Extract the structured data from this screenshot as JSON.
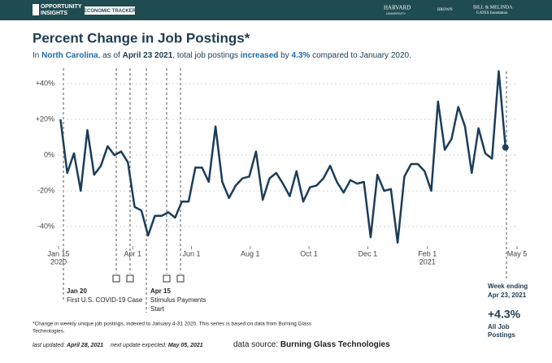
{
  "header": {
    "logo_line1": "OPPORTUNITY",
    "logo_line2": "INSIGHTS",
    "tracker": "ECONOMIC TRACKER",
    "harvard": "HARVARD",
    "harvard_sub": "UNIVERSITY",
    "brown": "BROWN",
    "gates": "BILL & MELINDA",
    "gates2": "GATES foundation"
  },
  "chart_data": {
    "type": "line",
    "title": "Percent Change in Job Postings*",
    "subtitle": [
      "In ",
      "North Carolina",
      ", as of ",
      "April 23 2021",
      ", total job postings ",
      "increased",
      " by ",
      "4.3%",
      " compared to January 2020."
    ],
    "x": [
      "2020-01-17",
      "2020-01-24",
      "2020-01-31",
      "2020-02-07",
      "2020-02-14",
      "2020-02-21",
      "2020-02-28",
      "2020-03-06",
      "2020-03-13",
      "2020-03-20",
      "2020-03-27",
      "2020-04-03",
      "2020-04-10",
      "2020-04-17",
      "2020-04-24",
      "2020-05-01",
      "2020-05-08",
      "2020-05-15",
      "2020-05-22",
      "2020-05-29",
      "2020-06-05",
      "2020-06-12",
      "2020-06-19",
      "2020-06-26",
      "2020-07-03",
      "2020-07-10",
      "2020-07-17",
      "2020-07-24",
      "2020-07-31",
      "2020-08-07",
      "2020-08-14",
      "2020-08-21",
      "2020-08-28",
      "2020-09-04",
      "2020-09-11",
      "2020-09-18",
      "2020-09-25",
      "2020-10-02",
      "2020-10-09",
      "2020-10-16",
      "2020-10-23",
      "2020-10-30",
      "2020-11-06",
      "2020-11-13",
      "2020-11-20",
      "2020-11-27",
      "2020-12-04",
      "2020-12-11",
      "2020-12-18",
      "2020-12-25",
      "2021-01-01",
      "2021-01-08",
      "2021-01-15",
      "2021-01-22",
      "2021-01-29",
      "2021-02-05",
      "2021-02-12",
      "2021-02-19",
      "2021-02-26",
      "2021-03-05",
      "2021-03-12",
      "2021-03-19",
      "2021-03-26",
      "2021-04-02",
      "2021-04-09",
      "2021-04-16",
      "2021-04-23"
    ],
    "series": [
      {
        "name": "All Job Postings",
        "color": "#1b3d5a",
        "values": [
          20,
          -10,
          1,
          -20,
          14,
          -11,
          -6,
          5,
          0,
          2,
          -4,
          -29,
          -31,
          -45,
          -34,
          -34,
          -32,
          -35,
          -26,
          -26,
          -7,
          -7,
          -15,
          16,
          -15,
          -24,
          -17,
          -13,
          -12,
          2,
          -25,
          -13,
          -10,
          -16,
          -23,
          -9,
          -26,
          -18,
          -17,
          -13,
          -6,
          -15,
          -21,
          -14,
          -16,
          -15,
          -46,
          -11,
          -20,
          -19,
          -49,
          -12,
          -5,
          -5,
          -9,
          -20,
          30,
          3,
          9,
          27,
          16,
          -10,
          15,
          1,
          -2,
          47,
          4.3
        ]
      }
    ],
    "xlim": [
      "2020-01-15",
      "2021-05-05"
    ],
    "xticks": [
      {
        "value": "2020-01-15",
        "label": "Jan 15",
        "year": "2020"
      },
      {
        "value": "2020-04-01",
        "label": "Apr 1"
      },
      {
        "value": "2020-06-01",
        "label": "Jun 1"
      },
      {
        "value": "2020-08-01",
        "label": "Aug 1"
      },
      {
        "value": "2020-10-01",
        "label": "Oct 1"
      },
      {
        "value": "2020-12-01",
        "label": "Dec 1"
      },
      {
        "value": "2021-02-01",
        "label": "Feb 1",
        "year": "2021"
      },
      {
        "value": "2021-05-05",
        "label": "May 5"
      }
    ],
    "ylim": [
      -50,
      50
    ],
    "yticks": [
      {
        "value": 40,
        "label": "+40%"
      },
      {
        "value": 20,
        "label": "+20%"
      },
      {
        "value": 0,
        "label": "0%"
      },
      {
        "value": -20,
        "label": "-20%"
      },
      {
        "value": -40,
        "label": "-40%"
      }
    ],
    "grid": true,
    "annotations": {
      "ev1_date": "Jan 20",
      "ev1_text": "First U.S. COVID-19 Case",
      "ev2_date": "Apr 15",
      "ev2_text1": "Stimulus Payments",
      "ev2_text2": "Start",
      "week_label": "Week ending",
      "week_date": "Apr 23, 2021",
      "callout": "+4.3%",
      "callout_l1": "All Job",
      "callout_l2": "Postings"
    }
  },
  "footer": {
    "note1": "*Change in weekly unique job postings, indexed to January 4-31 2020. This series is based on data from Burning Glass",
    "note2": "Technologies.",
    "updated_label": "last updated: ",
    "updated": "April 28, 2021",
    "next_label": "next update expected: ",
    "next": "May 05, 2021",
    "source_label": "data source: ",
    "source": "Burning Glass Technologies"
  }
}
